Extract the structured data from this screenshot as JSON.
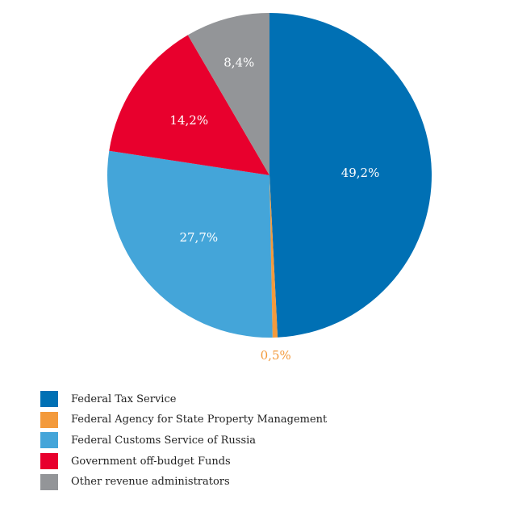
{
  "chart_data": {
    "type": "pie",
    "categories": [
      "Federal Tax Service",
      "Federal Agency for State Property Management",
      "Federal Customs Service of Russia",
      "Government off-budget Funds",
      "Other revenue administrators"
    ],
    "values": [
      49.2,
      0.5,
      27.7,
      14.2,
      8.4
    ],
    "value_labels": [
      "49,2%",
      "0,5%",
      "27,7%",
      "14,2%",
      "8,4%"
    ],
    "colors": [
      "#0070b4",
      "#f39a3c",
      "#44a5d9",
      "#e8002d",
      "#939598"
    ],
    "label_colors": [
      "#ffffff",
      "#f39a3c",
      "#ffffff",
      "#ffffff",
      "#ffffff"
    ],
    "start_angle_deg": 0,
    "direction": "clockwise",
    "legend_position": "bottom-left"
  }
}
